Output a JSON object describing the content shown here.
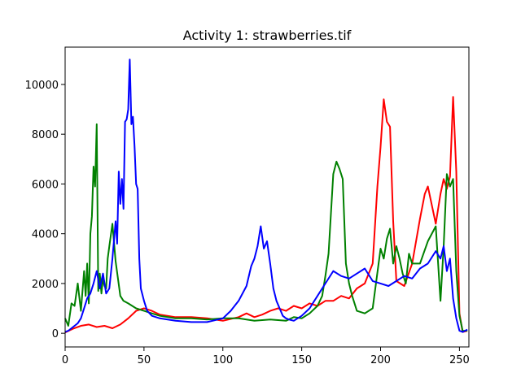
{
  "chart_data": {
    "type": "line",
    "title": "Activity 1: strawberries.tif",
    "xlabel": "",
    "ylabel": "",
    "xlim": [
      0,
      256
    ],
    "ylim": [
      -550,
      11500
    ],
    "xticks": [
      0,
      50,
      100,
      150,
      200,
      250
    ],
    "yticks": [
      0,
      2000,
      4000,
      6000,
      8000,
      10000
    ],
    "grid": false,
    "series": [
      {
        "color": "#ff0000",
        "x": [
          0,
          5,
          10,
          15,
          20,
          25,
          30,
          35,
          40,
          45,
          50,
          55,
          60,
          70,
          80,
          90,
          100,
          110,
          115,
          120,
          125,
          130,
          135,
          140,
          145,
          150,
          155,
          160,
          165,
          170,
          175,
          180,
          185,
          190,
          195,
          198,
          200,
          202,
          204,
          206,
          208,
          210,
          215,
          220,
          225,
          228,
          230,
          235,
          238,
          240,
          242,
          244,
          246,
          248,
          250,
          252,
          255
        ],
        "y": [
          30,
          180,
          300,
          350,
          250,
          300,
          200,
          350,
          600,
          900,
          1000,
          900,
          750,
          650,
          650,
          600,
          500,
          650,
          800,
          650,
          750,
          900,
          1000,
          900,
          1100,
          1000,
          1200,
          1100,
          1300,
          1300,
          1500,
          1400,
          1800,
          2000,
          2800,
          5900,
          7500,
          9400,
          8500,
          8300,
          4500,
          2100,
          1900,
          2800,
          4600,
          5600,
          5900,
          4400,
          5600,
          6200,
          5800,
          6300,
          9500,
          6500,
          800,
          50,
          100
        ]
      },
      {
        "color": "#008000",
        "x": [
          0,
          2,
          4,
          6,
          8,
          10,
          12,
          13,
          14,
          15,
          16,
          17,
          18,
          19,
          20,
          21,
          22,
          23,
          24,
          25,
          26,
          27,
          28,
          30,
          32,
          35,
          37,
          40,
          45,
          50,
          55,
          60,
          70,
          80,
          90,
          100,
          110,
          120,
          130,
          140,
          145,
          150,
          155,
          160,
          163,
          165,
          167,
          170,
          172,
          174,
          176,
          178,
          180,
          182,
          185,
          190,
          195,
          200,
          202,
          204,
          206,
          208,
          210,
          212,
          214,
          216,
          218,
          220,
          225,
          230,
          235,
          238,
          240,
          242,
          244,
          246,
          248,
          250,
          252,
          255
        ],
        "y": [
          600,
          300,
          1200,
          1100,
          2000,
          900,
          2500,
          1500,
          2800,
          1200,
          4000,
          4700,
          6700,
          5900,
          8400,
          1700,
          2400,
          1600,
          2200,
          1900,
          1800,
          3000,
          3500,
          4400,
          2900,
          1500,
          1300,
          1200,
          1000,
          900,
          800,
          700,
          600,
          600,
          550,
          600,
          600,
          500,
          550,
          500,
          650,
          600,
          800,
          1100,
          1500,
          2300,
          3200,
          6400,
          6900,
          6600,
          6200,
          2800,
          2000,
          1500,
          900,
          800,
          1000,
          3400,
          3000,
          3800,
          4200,
          2800,
          3500,
          3000,
          2400,
          2000,
          3200,
          2800,
          2800,
          3700,
          4300,
          1300,
          3500,
          6400,
          5900,
          6200,
          2500,
          700,
          100,
          100
        ]
      },
      {
        "color": "#0000ff",
        "x": [
          0,
          2,
          4,
          6,
          8,
          10,
          12,
          14,
          16,
          18,
          20,
          22,
          24,
          26,
          28,
          30,
          32,
          33,
          34,
          35,
          36,
          37,
          38,
          39,
          40,
          41,
          42,
          43,
          44,
          45,
          46,
          47,
          48,
          50,
          52,
          55,
          60,
          70,
          80,
          90,
          100,
          105,
          110,
          115,
          118,
          120,
          122,
          124,
          126,
          128,
          130,
          132,
          134,
          136,
          138,
          140,
          142,
          145,
          150,
          155,
          160,
          165,
          170,
          175,
          180,
          185,
          190,
          195,
          200,
          205,
          210,
          215,
          220,
          225,
          230,
          235,
          238,
          240,
          242,
          244,
          246,
          248,
          250,
          252,
          255
        ],
        "y": [
          50,
          100,
          200,
          300,
          400,
          600,
          1000,
          1400,
          1600,
          2000,
          2500,
          1800,
          2400,
          1600,
          1800,
          3000,
          4500,
          3600,
          6500,
          5200,
          6200,
          5000,
          8500,
          8600,
          9000,
          11000,
          8400,
          8700,
          7500,
          6000,
          5800,
          3000,
          1800,
          1300,
          900,
          700,
          600,
          500,
          450,
          450,
          600,
          900,
          1300,
          1900,
          2700,
          3000,
          3500,
          4300,
          3400,
          3700,
          2800,
          1800,
          1300,
          1000,
          700,
          600,
          550,
          500,
          700,
          1000,
          1500,
          2000,
          2500,
          2300,
          2200,
          2400,
          2600,
          2100,
          2000,
          1900,
          2100,
          2300,
          2200,
          2600,
          2800,
          3300,
          3000,
          3500,
          2500,
          3000,
          1400,
          600,
          100,
          50,
          150
        ]
      }
    ]
  }
}
